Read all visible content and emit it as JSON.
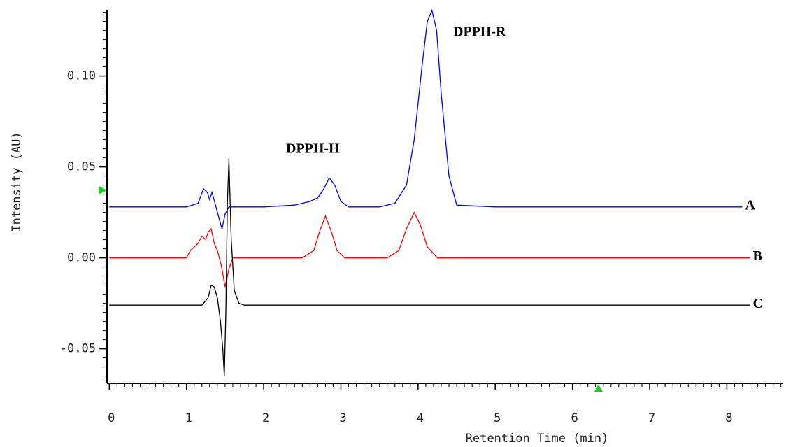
{
  "chart_data": {
    "type": "line",
    "xlabel": "Retention Time (min)",
    "ylabel": "Intensity (AU)",
    "xlim": [
      -0.03,
      8.73
    ],
    "ylim": [
      -0.069,
      0.136
    ],
    "xticks": [
      0,
      1,
      2,
      3,
      4,
      5,
      6,
      7,
      8
    ],
    "yticks": [
      {
        "value": -0.05,
        "label": "-0.05"
      },
      {
        "value": 0.0,
        "label": "0.00"
      },
      {
        "value": 0.05,
        "label": "0.05"
      },
      {
        "value": 0.1,
        "label": "0.10"
      }
    ],
    "annotations": [
      "DPPH-H",
      "DPPH-R"
    ],
    "series": [
      {
        "name": "A",
        "color": "#0000ff",
        "x": [
          0,
          1.0,
          1.15,
          1.22,
          1.27,
          1.3,
          1.33,
          1.37,
          1.42,
          1.46,
          1.5,
          1.55,
          2.0,
          2.4,
          2.6,
          2.7,
          2.78,
          2.85,
          2.92,
          3.0,
          3.1,
          3.5,
          3.7,
          3.85,
          3.95,
          4.05,
          4.12,
          4.18,
          4.24,
          4.3,
          4.4,
          4.5,
          5,
          6,
          7,
          8.2
        ],
        "values": [
          0.028,
          0.028,
          0.03,
          0.038,
          0.036,
          0.032,
          0.036,
          0.03,
          0.022,
          0.016,
          0.024,
          0.028,
          0.028,
          0.029,
          0.031,
          0.033,
          0.038,
          0.044,
          0.04,
          0.031,
          0.028,
          0.028,
          0.03,
          0.04,
          0.065,
          0.105,
          0.13,
          0.136,
          0.125,
          0.09,
          0.045,
          0.029,
          0.028,
          0.028,
          0.028,
          0.028
        ]
      },
      {
        "name": "B",
        "color": "#ff0000",
        "x": [
          0,
          1.0,
          1.05,
          1.1,
          1.15,
          1.2,
          1.25,
          1.28,
          1.32,
          1.36,
          1.4,
          1.45,
          1.5,
          1.55,
          1.6,
          1.7,
          2.5,
          2.65,
          2.72,
          2.8,
          2.88,
          2.95,
          3.05,
          3.6,
          3.75,
          3.85,
          3.95,
          4.03,
          4.12,
          4.25,
          4.5,
          6,
          8.3
        ],
        "values": [
          0,
          0,
          0.004,
          0.006,
          0.008,
          0.012,
          0.01,
          0.014,
          0.016,
          0.008,
          0.004,
          -0.004,
          -0.016,
          -0.006,
          0,
          0,
          0,
          0.004,
          0.014,
          0.023,
          0.014,
          0.004,
          0,
          0,
          0.004,
          0.016,
          0.025,
          0.018,
          0.006,
          0,
          0,
          0,
          0
        ]
      },
      {
        "name": "C",
        "color": "#000000",
        "x": [
          0,
          1.2,
          1.28,
          1.32,
          1.36,
          1.4,
          1.44,
          1.47,
          1.49,
          1.51,
          1.53,
          1.55,
          1.58,
          1.62,
          1.68,
          1.75,
          2,
          8.3
        ],
        "values": [
          -0.026,
          -0.026,
          -0.022,
          -0.015,
          -0.016,
          -0.022,
          -0.035,
          -0.05,
          -0.065,
          -0.03,
          0.03,
          0.054,
          0.01,
          -0.018,
          -0.025,
          -0.026,
          -0.026,
          -0.026
        ]
      }
    ]
  }
}
